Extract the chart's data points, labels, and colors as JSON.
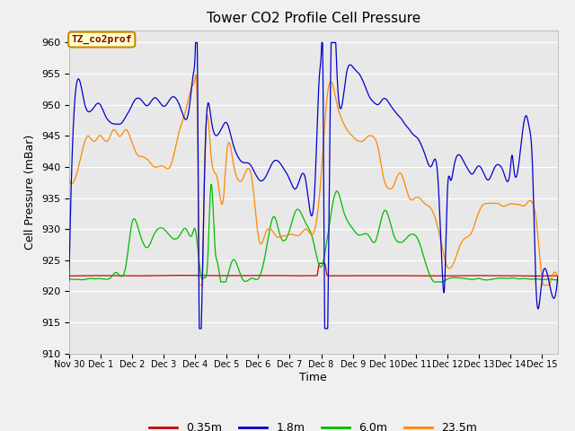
{
  "title": "Tower CO2 Profile Cell Pressure",
  "xlabel": "Time",
  "ylabel": "Cell Pressure (mBar)",
  "ylim": [
    910,
    962
  ],
  "yticks": [
    910,
    915,
    920,
    925,
    930,
    935,
    940,
    945,
    950,
    955,
    960
  ],
  "xlim_days": [
    0,
    15.5
  ],
  "xtick_labels": [
    "Nov 30",
    "Dec 1",
    "Dec 2",
    "Dec 3",
    "Dec 4",
    "Dec 5",
    "Dec 6",
    "Dec 7",
    "Dec 8",
    "Dec 9",
    "Dec 10",
    "Dec 11",
    "Dec 12",
    "Dec 13",
    "Dec 14",
    "Dec 15"
  ],
  "xtick_positions": [
    0,
    1,
    2,
    3,
    4,
    5,
    6,
    7,
    8,
    9,
    10,
    11,
    12,
    13,
    14,
    15
  ],
  "legend_labels": [
    "0.35m",
    "1.8m",
    "6.0m",
    "23.5m"
  ],
  "line_colors": [
    "#cc0000",
    "#0000cc",
    "#00bb00",
    "#ff8800"
  ],
  "plot_bg_color": "#e8e8e8",
  "fig_bg_color": "#f0f0f0",
  "annotation_text": "TZ_co2prof",
  "annotation_color": "#880000",
  "annotation_bg": "#ffffcc",
  "annotation_border": "#cc8800",
  "grid_color": "#ffffff"
}
